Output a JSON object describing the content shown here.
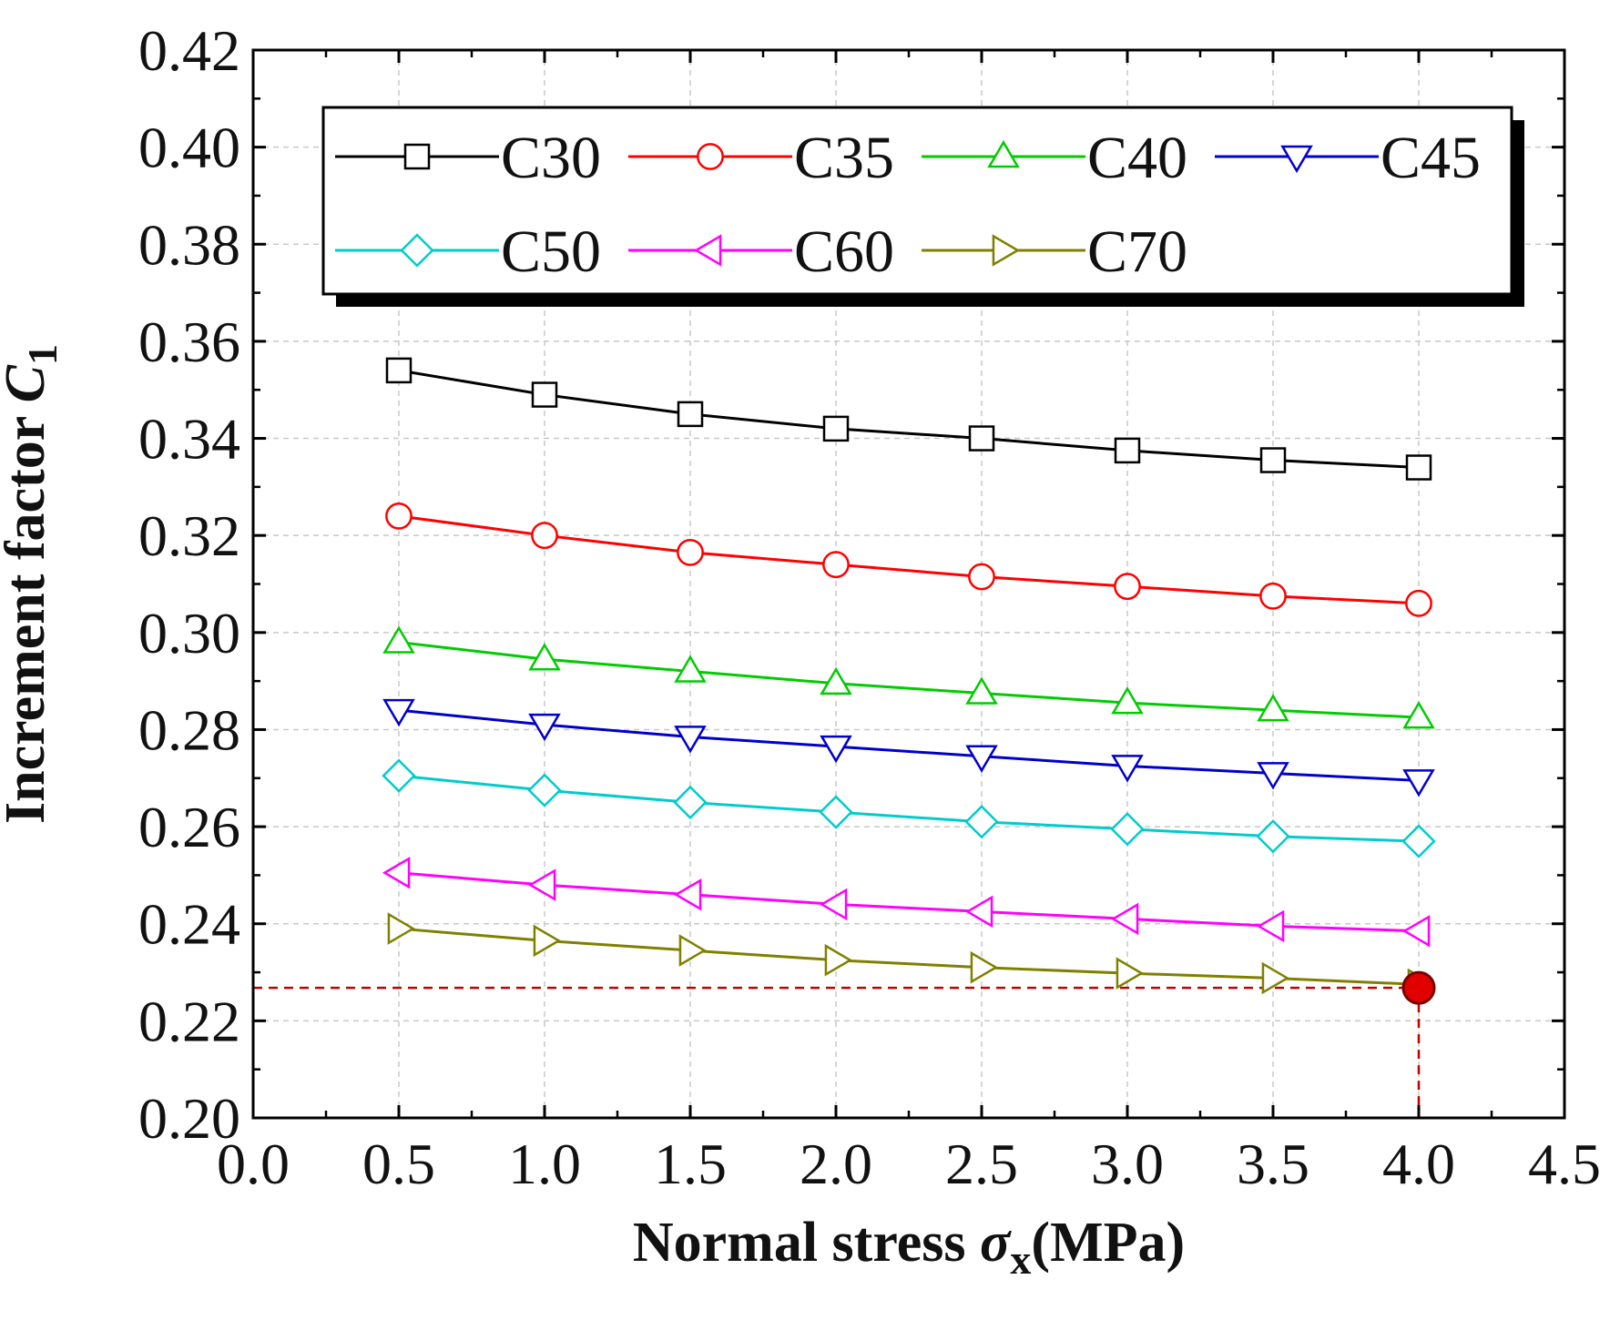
{
  "chart_data": {
    "type": "line",
    "xlabel": {
      "text": "Normal stress ",
      "symbol": "σ",
      "subscript": "x",
      "unit": "(MPa)"
    },
    "ylabel": {
      "text": "Increment factor ",
      "symbol": "C",
      "subscript": "1"
    },
    "xlim": [
      0.0,
      4.5
    ],
    "ylim": [
      0.2,
      0.42
    ],
    "x_ticks": [
      "0.0",
      "0.5",
      "1.0",
      "1.5",
      "2.0",
      "2.5",
      "3.0",
      "3.5",
      "4.0",
      "4.5"
    ],
    "y_ticks": [
      "0.20",
      "0.22",
      "0.24",
      "0.26",
      "0.28",
      "0.30",
      "0.32",
      "0.34",
      "0.36",
      "0.38",
      "0.40",
      "0.42"
    ],
    "grid": true,
    "legend_position": "top",
    "x": [
      0.5,
      1.0,
      1.5,
      2.0,
      2.5,
      3.0,
      3.5,
      4.0
    ],
    "series": [
      {
        "name": "C30",
        "color": "#000000",
        "marker": "square",
        "values": [
          0.354,
          0.349,
          0.345,
          0.342,
          0.34,
          0.3375,
          0.3355,
          0.334
        ]
      },
      {
        "name": "C35",
        "color": "#ff0000",
        "marker": "circle",
        "values": [
          0.324,
          0.32,
          0.3165,
          0.314,
          0.3115,
          0.3095,
          0.3075,
          0.306
        ]
      },
      {
        "name": "C40",
        "color": "#00cc00",
        "marker": "triangle-up",
        "values": [
          0.298,
          0.2945,
          0.292,
          0.2895,
          0.2875,
          0.2855,
          0.284,
          0.2825
        ]
      },
      {
        "name": "C45",
        "color": "#0000cc",
        "marker": "triangle-down",
        "values": [
          0.284,
          0.281,
          0.2785,
          0.2765,
          0.2745,
          0.2725,
          0.271,
          0.2695
        ]
      },
      {
        "name": "C50",
        "color": "#00cccc",
        "marker": "diamond",
        "values": [
          0.2705,
          0.2675,
          0.265,
          0.263,
          0.261,
          0.2595,
          0.258,
          0.257
        ]
      },
      {
        "name": "C60",
        "color": "#ff00ff",
        "marker": "triangle-left",
        "values": [
          0.2505,
          0.248,
          0.246,
          0.244,
          0.2425,
          0.241,
          0.2395,
          0.2385
        ]
      },
      {
        "name": "C70",
        "color": "#808000",
        "marker": "triangle-right",
        "values": [
          0.239,
          0.2365,
          0.2345,
          0.2325,
          0.231,
          0.2298,
          0.2288,
          0.2275
        ]
      }
    ],
    "annotation": {
      "type": "highlight-point",
      "x": 4.0,
      "y": 0.2268,
      "color": "#e00000",
      "guide_lines": "dashed to both axes"
    }
  }
}
